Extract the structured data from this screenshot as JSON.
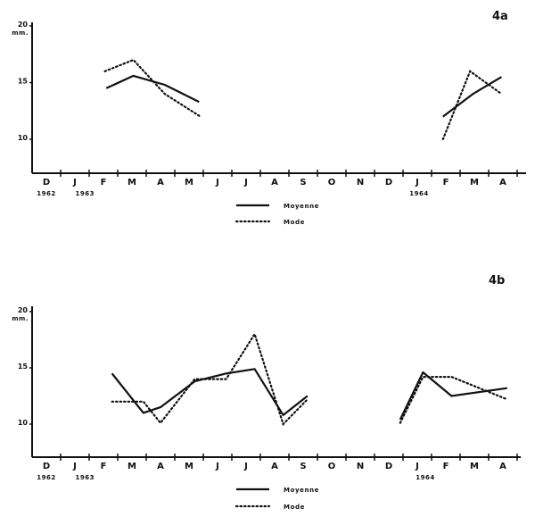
{
  "chart_data": [
    {
      "type": "line",
      "title": "4a",
      "ylabel": "mm.",
      "ylim": [
        7,
        20
      ],
      "yticks": [
        "10",
        "15",
        "20"
      ],
      "categories": [
        "D",
        "J",
        "F",
        "M",
        "A",
        "M",
        "J",
        "J",
        "A",
        "S",
        "O",
        "N",
        "D",
        "J",
        "F",
        "M",
        "A"
      ],
      "year_labels": [
        {
          "label": "1962",
          "at": 0
        },
        {
          "label": "1963",
          "at": 1.35
        },
        {
          "label": "1964",
          "at": 13.3
        }
      ],
      "legend": [
        "Moyenne",
        "Mode"
      ],
      "series": [
        {
          "name": "Moyenne",
          "style": "solid",
          "segments": [
            [
              [
                2.1,
                14.5
              ],
              [
                3.05,
                15.6
              ],
              [
                4.15,
                14.8
              ],
              [
                5.35,
                13.3
              ]
            ],
            [
              [
                13.9,
                12.0
              ],
              [
                14.95,
                14.0
              ],
              [
                15.95,
                15.5
              ]
            ]
          ]
        },
        {
          "name": "Mode",
          "style": "dotted",
          "segments": [
            [
              [
                2.05,
                16.0
              ],
              [
                3.05,
                17.0
              ],
              [
                4.15,
                14.0
              ],
              [
                5.4,
                12.0
              ]
            ],
            [
              [
                13.9,
                10.0
              ],
              [
                14.85,
                16.0
              ],
              [
                15.95,
                14.0
              ]
            ]
          ]
        }
      ]
    },
    {
      "type": "line",
      "title": "4b",
      "ylabel": "mm.",
      "ylim": [
        7,
        20
      ],
      "yticks": [
        "10",
        "15",
        "20"
      ],
      "categories": [
        "D",
        "J",
        "F",
        "M",
        "A",
        "M",
        "J",
        "J",
        "A",
        "S",
        "O",
        "N",
        "D",
        "J",
        "F",
        "M",
        "A"
      ],
      "year_labels": [
        {
          "label": "1962",
          "at": 0
        },
        {
          "label": "1963",
          "at": 1.35
        },
        {
          "label": "1964",
          "at": 13.3
        }
      ],
      "legend": [
        "Moyenne",
        "Mode"
      ],
      "series": [
        {
          "name": "Moyenne",
          "style": "solid",
          "segments": [
            [
              [
                2.3,
                14.5
              ],
              [
                3.4,
                11.0
              ],
              [
                4.0,
                11.5
              ],
              [
                5.2,
                13.8
              ],
              [
                6.3,
                14.5
              ],
              [
                7.3,
                14.9
              ],
              [
                8.3,
                10.8
              ],
              [
                9.15,
                12.5
              ]
            ],
            [
              [
                12.4,
                10.4
              ],
              [
                13.2,
                14.6
              ],
              [
                14.2,
                12.5
              ],
              [
                16.15,
                13.2
              ]
            ]
          ]
        },
        {
          "name": "Mode",
          "style": "dotted",
          "segments": [
            [
              [
                2.3,
                12.0
              ],
              [
                3.4,
                12.0
              ],
              [
                4.0,
                10.1
              ],
              [
                5.2,
                14.0
              ],
              [
                6.3,
                14.0
              ],
              [
                7.3,
                18.0
              ],
              [
                8.3,
                10.0
              ],
              [
                9.15,
                12.2
              ]
            ],
            [
              [
                12.4,
                10.1
              ],
              [
                13.2,
                14.2
              ],
              [
                14.2,
                14.2
              ],
              [
                16.15,
                12.2
              ]
            ]
          ]
        }
      ]
    }
  ]
}
